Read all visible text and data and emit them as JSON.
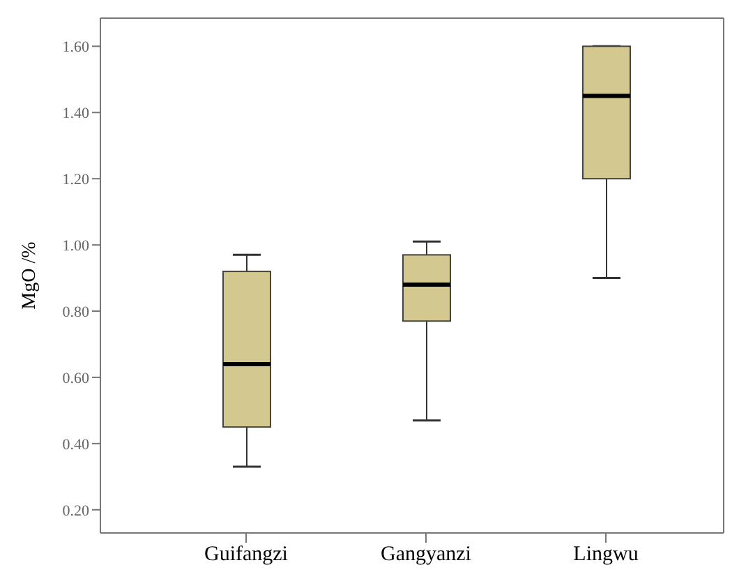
{
  "chart_data": {
    "type": "box",
    "ylabel": "MgO /%",
    "categories": [
      "Guifangzi",
      "Gangyanzi",
      "Lingwu"
    ],
    "color": "#d3c88f",
    "boxes": [
      {
        "low": 0.33,
        "q1": 0.45,
        "median": 0.64,
        "q3": 0.92,
        "high": 0.97
      },
      {
        "low": 0.47,
        "q1": 0.77,
        "median": 0.88,
        "q3": 0.97,
        "high": 1.01
      },
      {
        "low": 0.9,
        "q1": 1.2,
        "median": 1.45,
        "q3": 1.6,
        "high": 1.6
      }
    ],
    "ylim": [
      0.13,
      1.685
    ],
    "yticks": [
      {
        "value": 0.2,
        "label": "0.20"
      },
      {
        "value": 0.4,
        "label": "0.40"
      },
      {
        "value": 0.6,
        "label": "0.60"
      },
      {
        "value": 0.8,
        "label": "0.80"
      },
      {
        "value": 1.0,
        "label": "1.00"
      },
      {
        "value": 1.2,
        "label": "1.20"
      },
      {
        "value": 1.4,
        "label": "1.40"
      },
      {
        "value": 1.6,
        "label": "1.60"
      }
    ],
    "grid": false,
    "legend": false
  }
}
